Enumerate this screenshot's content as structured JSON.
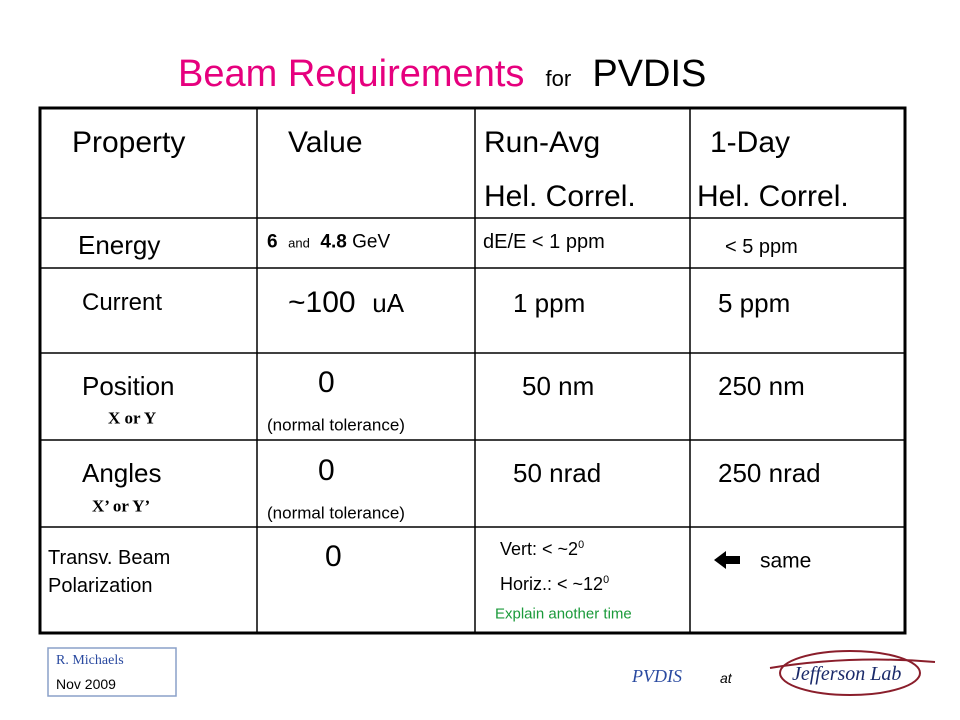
{
  "title": {
    "main": "Beam  Requirements",
    "small": "for",
    "project": "PVDIS"
  },
  "table": {
    "header": [
      [
        "Property"
      ],
      [
        "Value"
      ],
      [
        "Run-Avg",
        "Hel. Correl."
      ],
      [
        "1-Day",
        "Hel. Correl."
      ]
    ],
    "rows": [
      {
        "property": [
          "Energy"
        ],
        "value": [
          "6",
          "and",
          "4.8",
          "GeV"
        ],
        "run_avg": [
          "dE/E  < 1 ppm"
        ],
        "one_day": [
          "< 5 ppm"
        ]
      },
      {
        "property": [
          "Current"
        ],
        "value": [
          "~100",
          "uA"
        ],
        "run_avg": [
          "1 ppm"
        ],
        "one_day": [
          "5 ppm"
        ]
      },
      {
        "property": [
          "Position",
          "X  or  Y"
        ],
        "value": [
          "0",
          "(normal   tolerance)"
        ],
        "run_avg": [
          "50 nm"
        ],
        "one_day": [
          "250 nm"
        ]
      },
      {
        "property": [
          "Angles",
          "X’  or  Y’"
        ],
        "value": [
          "0",
          "(normal  tolerance)"
        ],
        "run_avg": [
          "50 nrad"
        ],
        "one_day": [
          "250 nrad"
        ]
      },
      {
        "property": [
          "Transv.  Beam",
          "Polarization"
        ],
        "value": [
          "0"
        ],
        "run_avg": [
          {
            "text": "Vert:  <  ~2",
            "sup": "0"
          },
          {
            "text": "Horiz.:  <   ~12",
            "sup": "0"
          },
          "Explain another time"
        ],
        "one_day": [
          "same"
        ]
      }
    ]
  },
  "footer": {
    "author": "R.  Michaels",
    "date": "Nov 2009",
    "project": "PVDIS",
    "at": "at",
    "logo": "Jefferson Lab"
  }
}
